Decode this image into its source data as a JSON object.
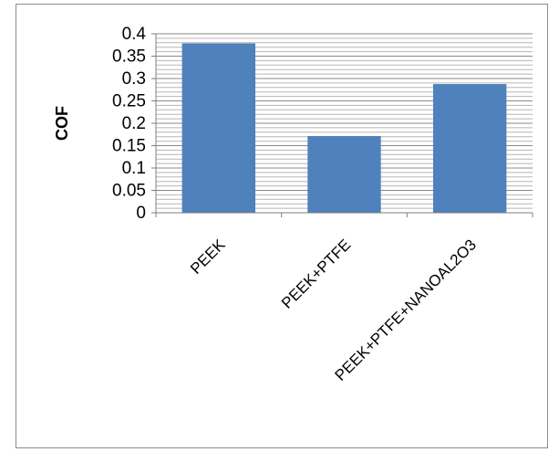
{
  "chart_data": {
    "type": "bar",
    "categories": [
      "PEEK",
      "PEEK+PTFE",
      "PEEK+PTFE+NANOAL2O3"
    ],
    "series": [
      {
        "values": [
          0.378,
          0.171,
          0.287
        ]
      }
    ],
    "title": "",
    "xlabel": "",
    "ylabel": "COF",
    "ylim": [
      0,
      0.4
    ],
    "yticks": [
      "0",
      "0.05",
      "0.1",
      "0.15",
      "0.2",
      "0.25",
      "0.3",
      "0.35",
      "0.4"
    ],
    "grid": true,
    "legend": "none",
    "bar_color": "#4f81bd"
  }
}
